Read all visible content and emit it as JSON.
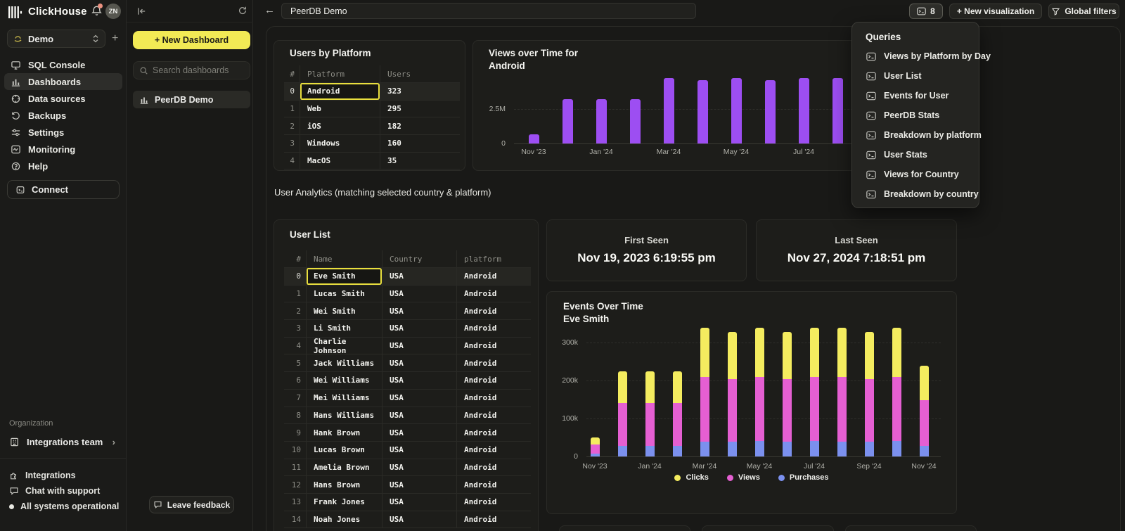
{
  "sidebar": {
    "brand": "ClickHouse",
    "avatar": "ZN",
    "workspace": "Demo",
    "nav": [
      {
        "label": "SQL Console"
      },
      {
        "label": "Dashboards"
      },
      {
        "label": "Data sources"
      },
      {
        "label": "Backups"
      },
      {
        "label": "Settings"
      },
      {
        "label": "Monitoring"
      },
      {
        "label": "Help"
      }
    ],
    "connect": "Connect",
    "organization_label": "Organization",
    "organization_team": "Integrations team",
    "footer": [
      {
        "label": "Integrations"
      },
      {
        "label": "Chat with support"
      },
      {
        "label": "All systems operational"
      }
    ]
  },
  "panel": {
    "new_dashboard": "+ New Dashboard",
    "search_placeholder": "Search dashboards",
    "dashboard_item": "PeerDB Demo",
    "leave_feedback": "Leave feedback"
  },
  "topbar": {
    "title": "PeerDB Demo",
    "queries_count": "8",
    "new_visualization": "+ New visualization",
    "global_filters": "Global filters"
  },
  "queries_panel": {
    "title": "Queries",
    "items": [
      {
        "label": "Views by Platform by Day"
      },
      {
        "label": "User List"
      },
      {
        "label": "Events for User"
      },
      {
        "label": "PeerDB Stats"
      },
      {
        "label": "Breakdown by platform"
      },
      {
        "label": "User Stats"
      },
      {
        "label": "Views for Country"
      },
      {
        "label": "Breakdown by country"
      }
    ]
  },
  "analytics_note": "User Analytics (matching selected country & platform)",
  "users_by_platform": {
    "title": "Users by Platform",
    "columns": [
      "#",
      "Platform",
      "Users"
    ],
    "rows": [
      [
        "0",
        "Android",
        "323"
      ],
      [
        "1",
        "Web",
        "295"
      ],
      [
        "2",
        "iOS",
        "182"
      ],
      [
        "3",
        "Windows",
        "160"
      ],
      [
        "4",
        "MacOS",
        "35"
      ]
    ],
    "selected_row": 0,
    "selected_col": 1
  },
  "user_list": {
    "title": "User List",
    "columns": [
      "#",
      "Name",
      "Country",
      "platform"
    ],
    "rows": [
      [
        "0",
        "Eve Smith",
        "USA",
        "Android"
      ],
      [
        "1",
        "Lucas Smith",
        "USA",
        "Android"
      ],
      [
        "2",
        "Wei Smith",
        "USA",
        "Android"
      ],
      [
        "3",
        "Li Smith",
        "USA",
        "Android"
      ],
      [
        "4",
        "Charlie Johnson",
        "USA",
        "Android"
      ],
      [
        "5",
        "Jack Williams",
        "USA",
        "Android"
      ],
      [
        "6",
        "Wei Williams",
        "USA",
        "Android"
      ],
      [
        "7",
        "Mei Williams",
        "USA",
        "Android"
      ],
      [
        "8",
        "Hans Williams",
        "USA",
        "Android"
      ],
      [
        "9",
        "Hank Brown",
        "USA",
        "Android"
      ],
      [
        "10",
        "Lucas Brown",
        "USA",
        "Android"
      ],
      [
        "11",
        "Amelia Brown",
        "USA",
        "Android"
      ],
      [
        "12",
        "Hans Brown",
        "USA",
        "Android"
      ],
      [
        "13",
        "Frank Jones",
        "USA",
        "Android"
      ],
      [
        "14",
        "Noah Jones",
        "USA",
        "Android"
      ]
    ],
    "selected_row": 0,
    "selected_col": 1
  },
  "first_seen": {
    "label": "First Seen",
    "value": "Nov 19, 2023 6:19:55 pm"
  },
  "last_seen": {
    "label": "Last Seen",
    "value": "Nov 27, 2024 7:18:51 pm"
  },
  "chart_data": [
    {
      "type": "bar",
      "title": "Views over Time for",
      "title_line2": "Android",
      "x": [
        "Nov '23",
        "Dec '23",
        "Jan '24",
        "Feb '24",
        "Mar '24",
        "Apr '24",
        "May '24",
        "Jun '24",
        "Jul '24",
        "Aug '24"
      ],
      "values_millions": [
        0.66,
        3.2,
        3.2,
        3.2,
        4.75,
        4.6,
        4.75,
        4.6,
        4.75,
        4.75
      ],
      "x_tick_labels": [
        "Nov '23",
        "Jan '24",
        "Mar '24",
        "May '24",
        "Jul '24"
      ],
      "yticks": [
        {
          "label": "0",
          "value": 0
        },
        {
          "label": "2.5M",
          "value": 2.5
        }
      ],
      "ylim": [
        0,
        5
      ],
      "bar_color": "#9d4ef2"
    },
    {
      "type": "stacked-bar",
      "title": "Events Over Time",
      "subtitle": "Eve Smith",
      "x": [
        "Nov '23",
        "Dec '23",
        "Jan '24",
        "Feb '24",
        "Mar '24",
        "Apr '24",
        "May '24",
        "Jun '24",
        "Jul '24",
        "Aug '24",
        "Sep '24",
        "Oct '24",
        "Nov '24"
      ],
      "x_tick_labels": [
        "Nov '23",
        "Jan '24",
        "Mar '24",
        "May '24",
        "Jul '24",
        "Sep '24",
        "Nov '24"
      ],
      "series": [
        {
          "name": "Clicks",
          "color": "#f4ec5f",
          "values_k": [
            18,
            85,
            85,
            85,
            129,
            124,
            128,
            124,
            128,
            129,
            124,
            128,
            90
          ]
        },
        {
          "name": "Views",
          "color": "#e55fd2",
          "values_k": [
            24,
            112,
            113,
            112,
            170,
            165,
            170,
            165,
            170,
            170,
            165,
            170,
            121
          ]
        },
        {
          "name": "Purchases",
          "color": "#7b90ee",
          "values_k": [
            8,
            28,
            27,
            28,
            39,
            38,
            40,
            38,
            40,
            39,
            38,
            40,
            28
          ]
        }
      ],
      "stack_order_bottom_to_top": [
        "Purchases",
        "Views",
        "Clicks"
      ],
      "yticks": [
        {
          "label": "0",
          "value": 0
        },
        {
          "label": "100k",
          "value": 100
        },
        {
          "label": "200k",
          "value": 200
        },
        {
          "label": "300k",
          "value": 300
        }
      ],
      "ylim": [
        0,
        350
      ],
      "legend_position": "bottom",
      "legend": [
        "Clicks",
        "Views",
        "Purchases"
      ]
    }
  ],
  "colors": {
    "accent_yellow": "#f2ea55",
    "selection_yellow": "#e9df3e",
    "bar_purple": "#9d4ef2",
    "clicks_yellow": "#f4ec5f",
    "views_magenta": "#e55fd2",
    "purchases_blue": "#7b90ee"
  }
}
